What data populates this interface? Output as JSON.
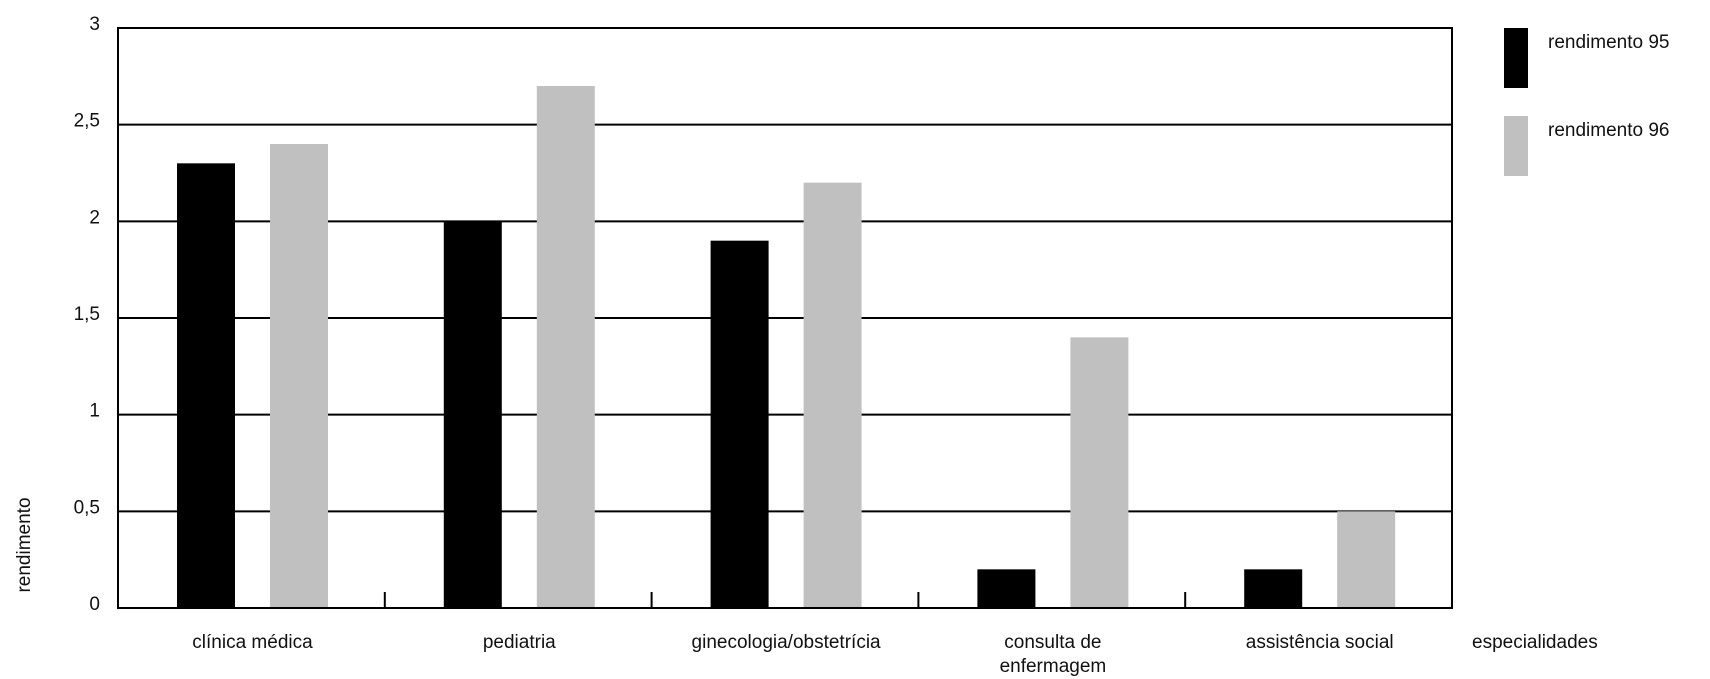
{
  "chart_data": {
    "type": "bar",
    "categories": [
      [
        "clínica médica"
      ],
      [
        "pediatria"
      ],
      [
        "ginecologia/obstetrícia"
      ],
      [
        "consulta de",
        "enfermagem"
      ],
      [
        "assistência social"
      ]
    ],
    "series": [
      {
        "name": "rendimento 95",
        "color": "#000000",
        "values": [
          2.3,
          2.0,
          1.9,
          0.2,
          0.2
        ]
      },
      {
        "name": "rendimento 96",
        "color": "#c0c0c0",
        "values": [
          2.4,
          2.7,
          2.2,
          1.4,
          0.5
        ]
      }
    ],
    "ylabel": "rendimento",
    "xlabel": "especialidades",
    "ylim": [
      0,
      3
    ],
    "yticks": [
      0,
      0.5,
      1,
      1.5,
      2,
      2.5,
      3
    ],
    "ytick_labels": [
      "0",
      "0,5",
      "1",
      "1,5",
      "2",
      "2,5",
      "3"
    ],
    "grid": true,
    "legend_position": "top-right"
  }
}
